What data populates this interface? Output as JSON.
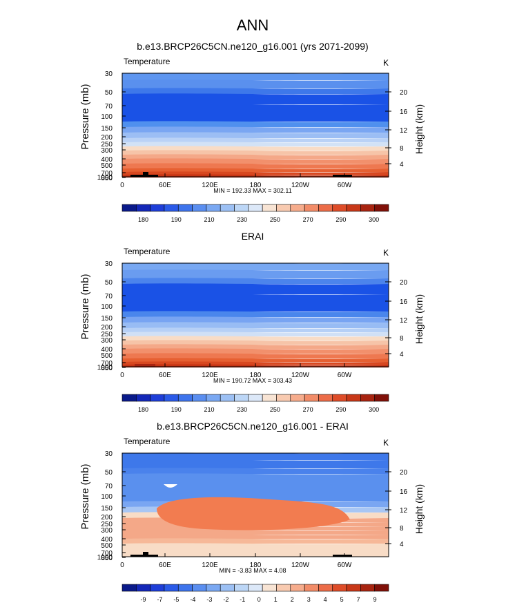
{
  "page_title": "ANN",
  "chart_data": [
    {
      "type": "heatmap",
      "title": "b.e13.BRCP26C5CN.ne120_g16.001 (yrs 2071-2099)",
      "variable": "Temperature",
      "units": "K",
      "ylabel": "Pressure (mb)",
      "ylabel_right": "Height (km)",
      "pressure_ticks": [
        "30",
        "50",
        "70",
        "100",
        "150",
        "200",
        "250",
        "300",
        "400",
        "500",
        "700",
        "850",
        "1000"
      ],
      "height_ticks": [
        "20",
        "16",
        "12",
        "8",
        "4"
      ],
      "lon_ticks": [
        "0",
        "60E",
        "120E",
        "180",
        "120W",
        "60W"
      ],
      "stats": "MIN = 192.33  MAX = 302.11",
      "colorbar_labels": [
        "180",
        "190",
        "210",
        "230",
        "250",
        "270",
        "290",
        "300"
      ],
      "band_colors": [
        "#5e96f0",
        "#5a90ee",
        "#3e78ea",
        "#1a52e6",
        "#1a52e6",
        "#5090ee",
        "#7aa6f2",
        "#9cbef4",
        "#bad2f6",
        "#d2e2f6",
        "#f8dcc6",
        "#f6c4a8",
        "#f4a888",
        "#f2906c",
        "#ee7850",
        "#e66032",
        "#d84820",
        "#c63414",
        "#a82410"
      ]
    },
    {
      "type": "heatmap",
      "title": "ERAI",
      "variable": "Temperature",
      "units": "K",
      "ylabel": "Pressure (mb)",
      "ylabel_right": "Height (km)",
      "pressure_ticks": [
        "30",
        "50",
        "70",
        "100",
        "150",
        "200",
        "250",
        "300",
        "400",
        "500",
        "700",
        "850",
        "1000"
      ],
      "height_ticks": [
        "20",
        "16",
        "12",
        "8",
        "4"
      ],
      "lon_ticks": [
        "0",
        "60E",
        "120E",
        "180",
        "120W",
        "60W"
      ],
      "stats": "MIN = 190.72  MAX = 303.43",
      "colorbar_labels": [
        "180",
        "190",
        "210",
        "230",
        "250",
        "270",
        "290",
        "300"
      ],
      "band_colors": [
        "#78a8f2",
        "#6a9cf0",
        "#4c84ec",
        "#1a52e6",
        "#1a52e6",
        "#4a86ec",
        "#78a4f2",
        "#98bcf4",
        "#b6d0f6",
        "#d0e0f6",
        "#f8dcc6",
        "#f6c4a8",
        "#f4a888",
        "#f2906c",
        "#ee7850",
        "#e66032",
        "#d84820",
        "#c63414",
        "#a82410"
      ]
    },
    {
      "type": "heatmap",
      "title": "b.e13.BRCP26C5CN.ne120_g16.001 - ERAI",
      "variable": "Temperature",
      "units": "K",
      "ylabel": "Pressure (mb)",
      "ylabel_right": "Height (km)",
      "pressure_ticks": [
        "30",
        "50",
        "70",
        "100",
        "150",
        "200",
        "250",
        "300",
        "400",
        "500",
        "700",
        "850",
        "1000"
      ],
      "height_ticks": [
        "20",
        "16",
        "12",
        "8",
        "4"
      ],
      "lon_ticks": [
        "0",
        "60E",
        "120E",
        "180",
        "120W",
        "60W"
      ],
      "stats": "MIN = -3.83  MAX =  4.08",
      "colorbar_labels": [
        "-9",
        "-7",
        "-5",
        "-4",
        "-3",
        "-2",
        "-1",
        "0",
        "1",
        "2",
        "3",
        "4",
        "5",
        "7",
        "9"
      ],
      "band_colors": [
        "#3e78ea",
        "#3e78ea",
        "#4a82ec",
        "#5a90ee",
        "#5a90ee",
        "#7aa6f2",
        "#a8c6f4",
        "#f8dcc6",
        "#f4a888",
        "#f4a888",
        "#f4a888",
        "#f4a888",
        "#f4a888",
        "#f6b898",
        "#f8dcc6"
      ]
    }
  ],
  "colorbars": {
    "absolute": [
      "#0a1a8a",
      "#1428b8",
      "#1e3ed8",
      "#2a5ae8",
      "#3e74ec",
      "#5a8ef0",
      "#7aa8f2",
      "#9cc0f4",
      "#bcd6f6",
      "#dce8f8",
      "#f8e4d4",
      "#f8cab0",
      "#f6ac8c",
      "#f28c68",
      "#ec6c48",
      "#de4c28",
      "#c83818",
      "#a82410",
      "#801008"
    ],
    "difference": [
      "#0a1a8a",
      "#1428b8",
      "#1e3ed8",
      "#2a5ae8",
      "#3e74ec",
      "#5a8ef0",
      "#7aa8f2",
      "#9cc0f4",
      "#bcd6f6",
      "#dce8f8",
      "#f8e4d4",
      "#f8cab0",
      "#f6ac8c",
      "#f28c68",
      "#ec6c48",
      "#de4c28",
      "#c83818",
      "#a82410",
      "#801008"
    ]
  }
}
